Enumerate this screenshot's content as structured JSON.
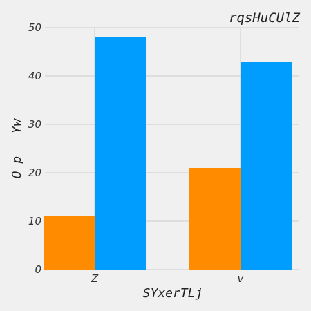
{
  "chart_data": {
    "type": "bar",
    "title": "rqsHuCUlZ",
    "xlabel": "SYxerTLj",
    "ylabel": "O p   Yw",
    "categories": [
      "Z",
      "v"
    ],
    "series": [
      {
        "values": [
          11,
          21
        ],
        "color": "#ff8b00"
      },
      {
        "values": [
          48,
          43
        ],
        "color": "#009dff"
      }
    ],
    "yticks": [
      0,
      10,
      20,
      30,
      40,
      50
    ],
    "ylim": [
      0,
      50
    ],
    "grid": true
  }
}
